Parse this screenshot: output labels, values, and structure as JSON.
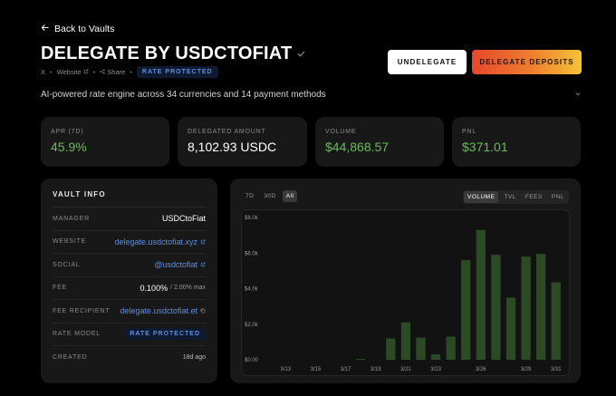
{
  "nav": {
    "back_label": "Back to Vaults"
  },
  "header": {
    "title": "DELEGATE BY USDCTOFIAT",
    "links": {
      "x": "X",
      "website": "Website",
      "share": "Share"
    },
    "badge": "RATE PROTECTED",
    "description": "AI-powered rate engine across 34 currencies and 14 payment methods"
  },
  "actions": {
    "undelegate": "UNDELEGATE",
    "delegate": "DELEGATE DEPOSITS"
  },
  "stats": [
    {
      "label": "APR (7D)",
      "value": "45.9%",
      "accent": "#6bbb5a"
    },
    {
      "label": "DELEGATED AMOUNT",
      "value": "8,102.93 USDC",
      "accent": "#ffffff"
    },
    {
      "label": "VOLUME",
      "value": "$44,868.57",
      "accent": "#6bbb5a"
    },
    {
      "label": "PNL",
      "value": "$371.01",
      "accent": "#6bbb5a"
    }
  ],
  "vault_info": {
    "title": "VAULT INFO",
    "manager": {
      "label": "MANAGER",
      "value": "USDCtoFiat"
    },
    "website": {
      "label": "WEBSITE",
      "value": "delegate.usdctofiat.xyz"
    },
    "social": {
      "label": "SOCIAL",
      "value": "@usdctofiat"
    },
    "fee": {
      "label": "FEE",
      "value": "0.100%",
      "max": "/ 2.00% max"
    },
    "fee_recipient": {
      "label": "FEE RECIPIENT",
      "value": "delegate.usdctofiat.et"
    },
    "rate_model": {
      "label": "RATE MODEL",
      "value": "RATE PROTECTED"
    },
    "created": {
      "label": "CREATED",
      "value": "18d ago"
    }
  },
  "chart_controls": {
    "ranges": [
      "7D",
      "30D",
      "All"
    ],
    "active_range": "All",
    "metrics": [
      "VOLUME",
      "TVL",
      "FEES",
      "PNL"
    ],
    "active_metric": "VOLUME"
  },
  "colors": {
    "bar": "#2d4a27",
    "link": "#5b8fe0",
    "positive": "#6bbb5a"
  },
  "chart_data": {
    "type": "bar",
    "y_ticks": [
      "$0.00",
      "$2.0k",
      "$4.0k",
      "$6.0k",
      "$8.0k"
    ],
    "ylim": [
      0,
      8000
    ],
    "x_ticks": [
      "3/13",
      "3/15",
      "3/17",
      "3/19",
      "3/21",
      "3/23",
      "3/26",
      "3/29",
      "3/31"
    ],
    "categories": [
      "3/13",
      "3/14",
      "3/15",
      "3/16",
      "3/17",
      "3/18",
      "3/19",
      "3/20",
      "3/21",
      "3/22",
      "3/23",
      "3/24",
      "3/25",
      "3/26",
      "3/27",
      "3/28",
      "3/29",
      "3/30",
      "3/31"
    ],
    "values": [
      0,
      0,
      0,
      0,
      0,
      50,
      0,
      1200,
      2100,
      1250,
      300,
      1300,
      5600,
      7300,
      5900,
      3500,
      5800,
      5950,
      4350
    ],
    "grid": false
  }
}
